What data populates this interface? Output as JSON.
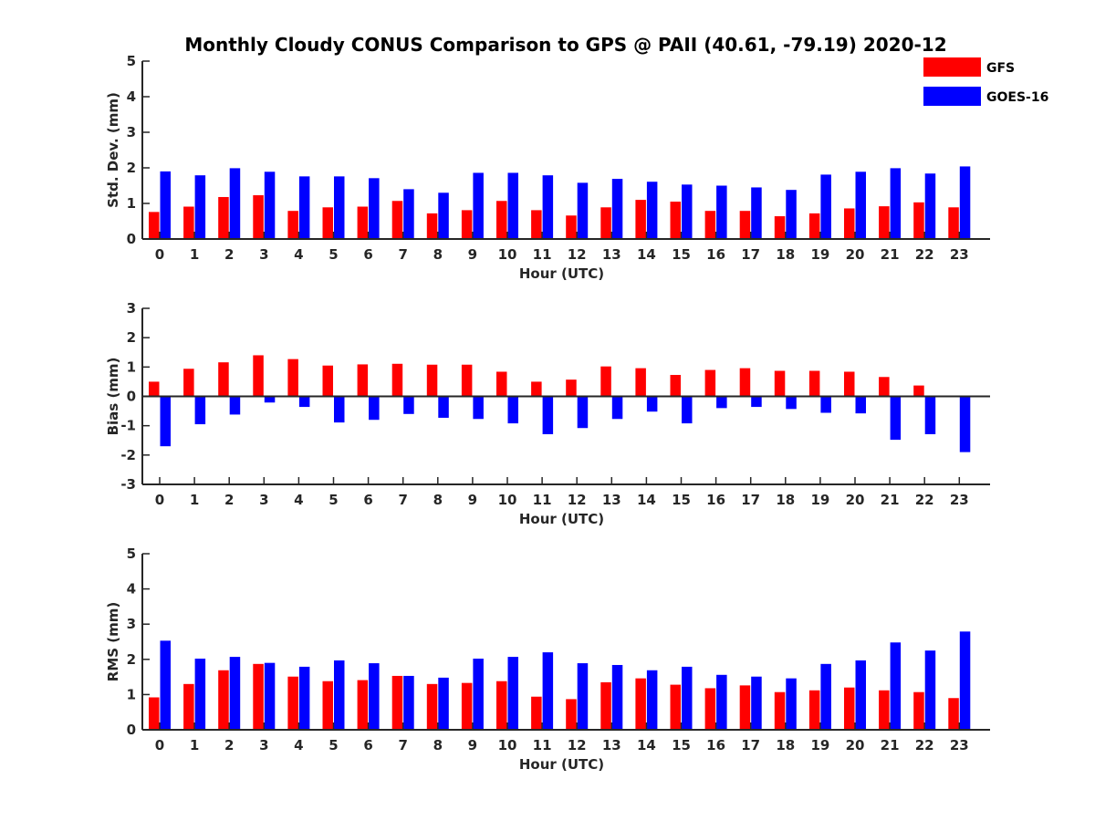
{
  "title": "Monthly Cloudy CONUS Comparison to GPS @ PAII (40.61, -79.19) 2020-12",
  "legend": {
    "placement": "top-right",
    "items": [
      {
        "label": "GFS",
        "color": "#ff0000"
      },
      {
        "label": "GOES-16",
        "color": "#0000ff"
      }
    ]
  },
  "chart_data": [
    {
      "type": "bar",
      "xlabel": "Hour (UTC)",
      "ylabel": "Std. Dev. (mm)",
      "ylim": [
        0,
        5
      ],
      "yticks": [
        0,
        1,
        2,
        3,
        4,
        5
      ],
      "categories": [
        "0",
        "1",
        "2",
        "3",
        "4",
        "5",
        "6",
        "7",
        "8",
        "9",
        "10",
        "11",
        "12",
        "13",
        "14",
        "15",
        "16",
        "17",
        "18",
        "19",
        "20",
        "21",
        "22",
        "23"
      ],
      "series": [
        {
          "name": "GFS",
          "color": "#ff0000",
          "values": [
            0.76,
            0.91,
            1.18,
            1.23,
            0.79,
            0.89,
            0.91,
            1.07,
            0.72,
            0.81,
            1.07,
            0.81,
            0.66,
            0.89,
            1.1,
            1.05,
            0.79,
            0.79,
            0.64,
            0.72,
            0.86,
            0.92,
            1.03,
            0.89
          ]
        },
        {
          "name": "GOES-16",
          "color": "#0000ff",
          "values": [
            1.9,
            1.79,
            1.99,
            1.89,
            1.76,
            1.76,
            1.71,
            1.4,
            1.3,
            1.86,
            1.86,
            1.79,
            1.58,
            1.69,
            1.61,
            1.53,
            1.5,
            1.45,
            1.38,
            1.81,
            1.89,
            1.99,
            1.84,
            2.04
          ]
        }
      ]
    },
    {
      "type": "bar",
      "xlabel": "Hour (UTC)",
      "ylabel": "Bias (mm)",
      "ylim": [
        -3,
        3
      ],
      "yticks": [
        -3,
        -2,
        -1,
        0,
        1,
        2,
        3
      ],
      "categories": [
        "0",
        "1",
        "2",
        "3",
        "4",
        "5",
        "6",
        "7",
        "8",
        "9",
        "10",
        "11",
        "12",
        "13",
        "14",
        "15",
        "16",
        "17",
        "18",
        "19",
        "20",
        "21",
        "22",
        "23"
      ],
      "series": [
        {
          "name": "GFS",
          "color": "#ff0000",
          "values": [
            0.5,
            0.94,
            1.16,
            1.4,
            1.27,
            1.05,
            1.09,
            1.11,
            1.08,
            1.08,
            0.84,
            0.5,
            0.57,
            1.02,
            0.96,
            0.73,
            0.9,
            0.96,
            0.87,
            0.87,
            0.84,
            0.66,
            0.37,
            0.0
          ]
        },
        {
          "name": "GOES-16",
          "color": "#0000ff",
          "values": [
            -1.7,
            -0.95,
            -0.62,
            -0.21,
            -0.36,
            -0.89,
            -0.8,
            -0.6,
            -0.73,
            -0.77,
            -0.92,
            -1.29,
            -1.08,
            -0.77,
            -0.52,
            -0.92,
            -0.4,
            -0.36,
            -0.43,
            -0.56,
            -0.58,
            -1.48,
            -1.29,
            -1.9
          ]
        }
      ]
    },
    {
      "type": "bar",
      "xlabel": "Hour (UTC)",
      "ylabel": "RMS (mm)",
      "ylim": [
        0,
        5
      ],
      "yticks": [
        0,
        1,
        2,
        3,
        4,
        5
      ],
      "categories": [
        "0",
        "1",
        "2",
        "3",
        "4",
        "5",
        "6",
        "7",
        "8",
        "9",
        "10",
        "11",
        "12",
        "13",
        "14",
        "15",
        "16",
        "17",
        "18",
        "19",
        "20",
        "21",
        "22",
        "23"
      ],
      "series": [
        {
          "name": "GFS",
          "color": "#ff0000",
          "values": [
            0.92,
            1.3,
            1.69,
            1.87,
            1.51,
            1.38,
            1.41,
            1.53,
            1.3,
            1.33,
            1.38,
            0.94,
            0.87,
            1.35,
            1.46,
            1.28,
            1.18,
            1.26,
            1.07,
            1.12,
            1.2,
            1.12,
            1.07,
            0.9
          ]
        },
        {
          "name": "GOES-16",
          "color": "#0000ff",
          "values": [
            2.53,
            2.02,
            2.07,
            1.9,
            1.79,
            1.97,
            1.89,
            1.53,
            1.48,
            2.02,
            2.07,
            2.2,
            1.89,
            1.84,
            1.69,
            1.79,
            1.56,
            1.51,
            1.46,
            1.87,
            1.97,
            2.48,
            2.25,
            2.79
          ]
        }
      ]
    }
  ]
}
